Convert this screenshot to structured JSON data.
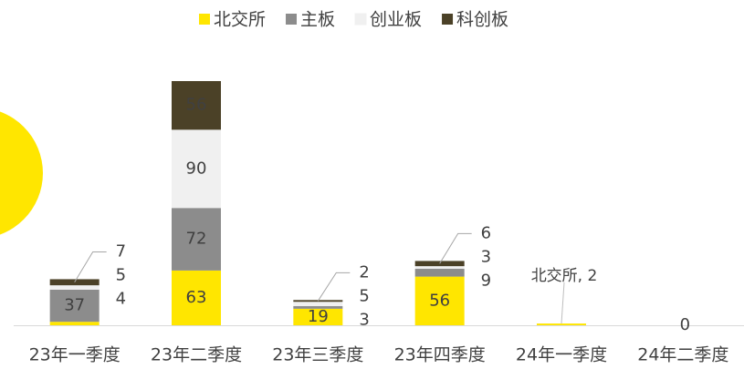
{
  "chart_data": {
    "type": "stacked_bar",
    "categories": [
      "23年一季度",
      "23年二季度",
      "23年三季度",
      "23年四季度",
      "24年一季度",
      "24年二季度"
    ],
    "series": [
      {
        "name": "北交所",
        "color": "#ffe600",
        "values": [
          4,
          63,
          19,
          56,
          2,
          0
        ],
        "value_labels": [
          "4",
          "63",
          "19",
          "56",
          "北交所, 2",
          "0"
        ]
      },
      {
        "name": "主板",
        "color": "#8c8c8c",
        "values": [
          37,
          72,
          3,
          9,
          0,
          0
        ]
      },
      {
        "name": "创业板",
        "color": "#f0f0f0",
        "values": [
          5,
          90,
          5,
          3,
          0,
          0
        ]
      },
      {
        "name": "科创板",
        "color": "#4b4127",
        "values": [
          7,
          56,
          2,
          6,
          0,
          0
        ]
      }
    ],
    "legend": "top"
  }
}
